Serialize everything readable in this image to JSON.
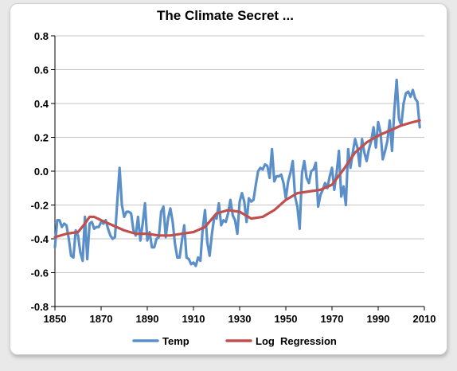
{
  "chart_data": {
    "type": "line",
    "title": "The Climate Secret ...",
    "xlabel": "",
    "ylabel": "",
    "xlim": [
      1850,
      2010
    ],
    "ylim": [
      -0.8,
      0.8
    ],
    "x_ticks": [
      "1850",
      "1870",
      "1890",
      "1910",
      "1930",
      "1950",
      "1970",
      "1990",
      "2010"
    ],
    "y_ticks": [
      "0.8",
      "0.6",
      "0.4",
      "0.2",
      "0.0",
      "-0.2",
      "-0.4",
      "-0.6",
      "-0.8"
    ],
    "grid": "horizontal",
    "legend_position": "bottom",
    "series": [
      {
        "name": "Temp",
        "color": "#5b8fc9",
        "x": [
          1850,
          1851,
          1852,
          1853,
          1854,
          1855,
          1856,
          1857,
          1858,
          1859,
          1860,
          1861,
          1862,
          1863,
          1864,
          1865,
          1866,
          1867,
          1868,
          1869,
          1870,
          1871,
          1872,
          1873,
          1874,
          1875,
          1876,
          1877,
          1878,
          1879,
          1880,
          1881,
          1882,
          1883,
          1884,
          1885,
          1886,
          1887,
          1888,
          1889,
          1890,
          1891,
          1892,
          1893,
          1894,
          1895,
          1896,
          1897,
          1898,
          1899,
          1900,
          1901,
          1902,
          1903,
          1904,
          1905,
          1906,
          1907,
          1908,
          1909,
          1910,
          1911,
          1912,
          1913,
          1914,
          1915,
          1916,
          1917,
          1918,
          1919,
          1920,
          1921,
          1922,
          1923,
          1924,
          1925,
          1926,
          1927,
          1928,
          1929,
          1930,
          1931,
          1932,
          1933,
          1934,
          1935,
          1936,
          1937,
          1938,
          1939,
          1940,
          1941,
          1942,
          1943,
          1944,
          1945,
          1946,
          1947,
          1948,
          1949,
          1950,
          1951,
          1952,
          1953,
          1954,
          1955,
          1956,
          1957,
          1958,
          1959,
          1960,
          1961,
          1962,
          1963,
          1964,
          1965,
          1966,
          1967,
          1968,
          1969,
          1970,
          1971,
          1972,
          1973,
          1974,
          1975,
          1976,
          1977,
          1978,
          1979,
          1980,
          1981,
          1982,
          1983,
          1984,
          1985,
          1986,
          1987,
          1988,
          1989,
          1990,
          1991,
          1992,
          1993,
          1994,
          1995,
          1996,
          1997,
          1998,
          1999,
          2000,
          2001,
          2002,
          2003,
          2004,
          2005,
          2006,
          2007,
          2008
        ],
        "values": [
          -0.45,
          -0.29,
          -0.29,
          -0.33,
          -0.31,
          -0.32,
          -0.4,
          -0.5,
          -0.51,
          -0.35,
          -0.38,
          -0.48,
          -0.53,
          -0.27,
          -0.52,
          -0.31,
          -0.3,
          -0.34,
          -0.33,
          -0.33,
          -0.3,
          -0.31,
          -0.29,
          -0.34,
          -0.38,
          -0.4,
          -0.39,
          -0.18,
          0.02,
          -0.2,
          -0.27,
          -0.24,
          -0.24,
          -0.25,
          -0.35,
          -0.38,
          -0.27,
          -0.41,
          -0.31,
          -0.19,
          -0.41,
          -0.36,
          -0.45,
          -0.45,
          -0.4,
          -0.39,
          -0.24,
          -0.21,
          -0.39,
          -0.28,
          -0.22,
          -0.3,
          -0.43,
          -0.51,
          -0.51,
          -0.41,
          -0.32,
          -0.51,
          -0.52,
          -0.55,
          -0.54,
          -0.56,
          -0.51,
          -0.53,
          -0.34,
          -0.23,
          -0.42,
          -0.5,
          -0.37,
          -0.27,
          -0.28,
          -0.19,
          -0.32,
          -0.29,
          -0.3,
          -0.25,
          -0.17,
          -0.26,
          -0.29,
          -0.37,
          -0.18,
          -0.13,
          -0.18,
          -0.3,
          -0.16,
          -0.18,
          -0.17,
          -0.08,
          0.0,
          0.02,
          0.01,
          0.04,
          0.03,
          -0.04,
          0.13,
          -0.06,
          -0.03,
          -0.03,
          -0.02,
          -0.07,
          -0.16,
          -0.06,
          -0.01,
          0.06,
          -0.15,
          -0.21,
          -0.34,
          -0.01,
          0.06,
          -0.04,
          -0.07,
          0.0,
          0.01,
          0.05,
          -0.21,
          -0.14,
          -0.11,
          -0.07,
          -0.1,
          -0.03,
          0.02,
          -0.11,
          -0.01,
          0.12,
          -0.15,
          -0.09,
          -0.2,
          0.13,
          0.02,
          0.11,
          0.19,
          0.14,
          0.03,
          0.19,
          0.11,
          0.06,
          0.13,
          0.18,
          0.26,
          0.14,
          0.29,
          0.23,
          0.07,
          0.12,
          0.18,
          0.3,
          0.12,
          0.36,
          0.54,
          0.31,
          0.27,
          0.4,
          0.46,
          0.47,
          0.44,
          0.48,
          0.43,
          0.41,
          0.26
        ]
      },
      {
        "name": "Log  Regression",
        "color": "#c0504d",
        "x": [
          1850,
          1855,
          1860,
          1863,
          1865,
          1867,
          1870,
          1875,
          1880,
          1885,
          1890,
          1895,
          1900,
          1905,
          1910,
          1915,
          1920,
          1925,
          1930,
          1935,
          1940,
          1945,
          1950,
          1955,
          1960,
          1965,
          1970,
          1975,
          1980,
          1985,
          1990,
          1995,
          2000,
          2005,
          2008
        ],
        "values": [
          -0.39,
          -0.37,
          -0.36,
          -0.31,
          -0.27,
          -0.27,
          -0.29,
          -0.32,
          -0.35,
          -0.37,
          -0.37,
          -0.38,
          -0.38,
          -0.37,
          -0.36,
          -0.33,
          -0.25,
          -0.23,
          -0.24,
          -0.28,
          -0.27,
          -0.23,
          -0.17,
          -0.13,
          -0.12,
          -0.11,
          -0.08,
          0.01,
          0.11,
          0.17,
          0.21,
          0.24,
          0.27,
          0.29,
          0.3
        ]
      }
    ]
  }
}
